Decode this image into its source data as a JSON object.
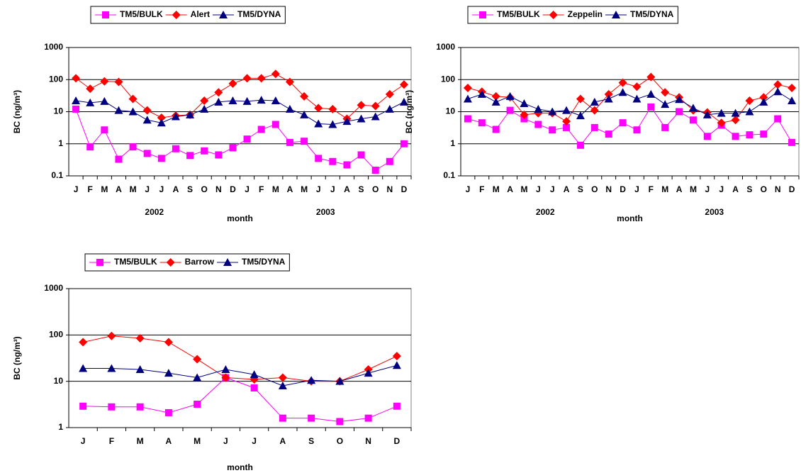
{
  "chart_data": [
    {
      "type": "line",
      "ylabel": "BC (ng/m³)",
      "xlabel": "month",
      "yscale": "log",
      "grid": true,
      "legend": "top",
      "categories": [
        "J",
        "F",
        "M",
        "A",
        "M",
        "J",
        "J",
        "A",
        "S",
        "O",
        "N",
        "D",
        "J",
        "F",
        "M",
        "A",
        "M",
        "J",
        "J",
        "A",
        "S",
        "O",
        "N",
        "D"
      ],
      "groups": [
        "2002",
        "2003"
      ],
      "ylim": [
        0.1,
        1000
      ],
      "yticks": [
        0.1,
        1,
        10,
        100,
        1000
      ],
      "series": [
        {
          "name": "TM5/BULK",
          "color": "#ff00ff",
          "marker": "square",
          "values": [
            12,
            0.8,
            2.7,
            0.33,
            0.8,
            0.5,
            0.35,
            0.7,
            0.43,
            0.6,
            0.45,
            0.75,
            1.4,
            2.8,
            4,
            1.1,
            1.2,
            0.35,
            0.28,
            0.22,
            0.45,
            0.15,
            0.28,
            1.0
          ]
        },
        {
          "name": "Alert",
          "color": "#ff0000",
          "marker": "diamond",
          "values": [
            110,
            52,
            88,
            85,
            25,
            11,
            6.5,
            7.5,
            8,
            22,
            40,
            75,
            110,
            110,
            150,
            85,
            30,
            13,
            12,
            6,
            16,
            15,
            35,
            70
          ]
        },
        {
          "name": "TM5/DYNA",
          "color": "#000080",
          "marker": "triangle",
          "values": [
            22,
            19,
            21,
            11,
            10,
            5.5,
            4.5,
            7,
            8,
            12,
            20,
            22,
            21,
            23,
            22,
            12,
            8,
            4.2,
            4,
            5,
            6,
            7,
            12,
            20
          ]
        }
      ]
    },
    {
      "type": "line",
      "ylabel": "BC (ng/m³)",
      "xlabel": "month",
      "yscale": "log",
      "grid": true,
      "legend": "top",
      "categories": [
        "J",
        "F",
        "M",
        "A",
        "M",
        "J",
        "J",
        "A",
        "S",
        "O",
        "N",
        "D",
        "J",
        "F",
        "M",
        "A",
        "M",
        "J",
        "J",
        "A",
        "S",
        "O",
        "N",
        "D"
      ],
      "groups": [
        "2002",
        "2003"
      ],
      "ylim": [
        0.1,
        1000
      ],
      "yticks": [
        0.1,
        1,
        10,
        100,
        1000
      ],
      "series": [
        {
          "name": "TM5/BULK",
          "color": "#ff00ff",
          "marker": "square",
          "values": [
            6,
            4.5,
            2.8,
            11,
            6,
            4,
            2.7,
            3.2,
            0.9,
            3.2,
            2,
            4.5,
            2.7,
            14,
            3.2,
            10,
            5.5,
            1.7,
            3.8,
            1.7,
            1.9,
            2,
            6,
            1.1
          ]
        },
        {
          "name": "Zeppelin",
          "color": "#ff0000",
          "marker": "diamond",
          "values": [
            55,
            42,
            30,
            28,
            8,
            9,
            9,
            5,
            25,
            11,
            35,
            80,
            60,
            120,
            40,
            28,
            11,
            9.5,
            4.5,
            5.5,
            22,
            28,
            70,
            55
          ]
        },
        {
          "name": "TM5/DYNA",
          "color": "#000080",
          "marker": "triangle",
          "values": [
            25,
            35,
            20,
            30,
            18,
            12,
            10,
            11,
            7.5,
            20,
            25,
            40,
            25,
            35,
            17,
            24,
            13,
            8,
            9,
            9,
            10,
            20,
            42,
            22
          ]
        }
      ]
    },
    {
      "type": "line",
      "ylabel": "BC (ng/m³)",
      "xlabel": "month",
      "yscale": "log",
      "grid": true,
      "legend": "top",
      "categories": [
        "J",
        "F",
        "M",
        "A",
        "M",
        "J",
        "J",
        "A",
        "S",
        "O",
        "N",
        "D"
      ],
      "ylim": [
        1,
        1000
      ],
      "yticks": [
        1,
        10,
        100,
        1000
      ],
      "series": [
        {
          "name": "TM5/BULK",
          "color": "#ff00ff",
          "marker": "square",
          "values": [
            2.9,
            2.8,
            2.8,
            2.1,
            3.2,
            12,
            7.2,
            1.6,
            1.6,
            1.35,
            1.6,
            2.9
          ]
        },
        {
          "name": "Barrow",
          "color": "#ff0000",
          "marker": "diamond",
          "values": [
            70,
            95,
            85,
            70,
            30,
            12,
            11,
            12,
            10,
            10,
            18,
            35
          ]
        },
        {
          "name": "TM5/DYNA",
          "color": "#000080",
          "marker": "triangle",
          "values": [
            19,
            19,
            18,
            15,
            12,
            18,
            14,
            8,
            10.5,
            10,
            15,
            22
          ]
        }
      ]
    }
  ]
}
